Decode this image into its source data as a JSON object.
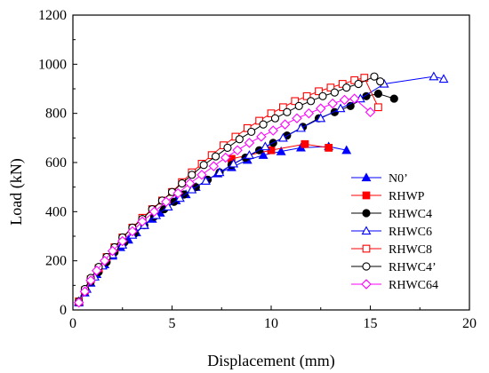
{
  "chart_data": {
    "type": "scatter",
    "xlabel": "Displacement (mm)",
    "ylabel": "Load (kN)",
    "xlim": [
      0,
      20
    ],
    "ylim": [
      0,
      1200
    ],
    "xticks": [
      0,
      5,
      10,
      15,
      20
    ],
    "yticks": [
      0,
      200,
      400,
      600,
      800,
      1000,
      1200
    ],
    "grid": false,
    "legend_position": "right",
    "series": [
      {
        "name": "N0’",
        "color": "#0000ff",
        "marker": "triangle-filled",
        "x": [
          0.3,
          0.6,
          0.9,
          1.2,
          1.6,
          2.0,
          2.4,
          2.8,
          3.2,
          3.6,
          4.0,
          4.4,
          4.8,
          5.2,
          5.7,
          6.2,
          6.7,
          7.3,
          8.0,
          8.8,
          9.6,
          10.5,
          11.5,
          12.9,
          13.8
        ],
        "y": [
          30,
          70,
          110,
          145,
          185,
          220,
          255,
          285,
          315,
          345,
          370,
          395,
          420,
          445,
          470,
          500,
          525,
          555,
          580,
          610,
          630,
          645,
          660,
          665,
          650
        ]
      },
      {
        "name": "RHWP",
        "color": "#ff0000",
        "marker": "square-filled",
        "x": [
          8.0,
          10.0,
          11.7,
          12.9
        ],
        "y": [
          615,
          650,
          675,
          660
        ]
      },
      {
        "name": "RHWC4",
        "color": "#000000",
        "marker": "circle-filled",
        "x": [
          0.3,
          0.6,
          0.9,
          1.3,
          1.7,
          2.1,
          2.6,
          3.1,
          3.6,
          4.1,
          4.6,
          5.1,
          5.6,
          6.2,
          6.8,
          7.4,
          8.0,
          8.7,
          9.4,
          10.1,
          10.8,
          11.6,
          12.4,
          13.2,
          14.0,
          14.8,
          15.4,
          16.2
        ],
        "y": [
          30,
          75,
          115,
          155,
          195,
          235,
          275,
          310,
          345,
          380,
          410,
          440,
          470,
          500,
          530,
          560,
          590,
          620,
          650,
          680,
          710,
          745,
          780,
          805,
          830,
          870,
          880,
          860
        ]
      },
      {
        "name": "RHWC6",
        "color": "#0000ff",
        "marker": "triangle-open",
        "x": [
          0.3,
          0.7,
          1.1,
          1.5,
          2.0,
          2.5,
          3.0,
          3.6,
          4.2,
          4.8,
          5.4,
          6.0,
          6.7,
          7.4,
          8.1,
          8.9,
          9.7,
          10.6,
          11.5,
          12.5,
          13.5,
          14.5,
          15.7,
          18.2,
          18.7
        ],
        "y": [
          35,
          85,
          135,
          180,
          225,
          265,
          305,
          345,
          385,
          420,
          455,
          490,
          525,
          560,
          595,
          630,
          665,
          700,
          740,
          780,
          820,
          860,
          920,
          950,
          940
        ]
      },
      {
        "name": "RHWC8",
        "color": "#ff0000",
        "marker": "square-open",
        "x": [
          0.3,
          0.6,
          0.9,
          1.3,
          1.7,
          2.1,
          2.5,
          3.0,
          3.5,
          4.0,
          4.5,
          5.0,
          5.5,
          6.0,
          6.5,
          7.0,
          7.6,
          8.2,
          8.8,
          9.4,
          10.0,
          10.6,
          11.2,
          11.8,
          12.4,
          13.0,
          13.6,
          14.2,
          14.7,
          15.4
        ],
        "y": [
          35,
          80,
          125,
          170,
          215,
          255,
          295,
          335,
          375,
          410,
          445,
          480,
          520,
          560,
          595,
          630,
          670,
          705,
          740,
          770,
          800,
          825,
          850,
          870,
          890,
          905,
          920,
          935,
          945,
          825
        ]
      },
      {
        "name": "RHWC4’",
        "color": "#000000",
        "marker": "circle-open",
        "x": [
          0.3,
          0.6,
          0.9,
          1.3,
          1.7,
          2.1,
          2.5,
          3.0,
          3.5,
          4.0,
          4.5,
          5.0,
          5.5,
          6.0,
          6.6,
          7.2,
          7.8,
          8.4,
          9.0,
          9.6,
          10.2,
          10.8,
          11.4,
          12.0,
          12.6,
          13.2,
          13.8,
          14.4,
          15.2,
          15.5
        ],
        "y": [
          35,
          85,
          130,
          175,
          215,
          255,
          295,
          335,
          370,
          410,
          445,
          480,
          515,
          550,
          590,
          625,
          660,
          695,
          725,
          755,
          780,
          805,
          830,
          850,
          870,
          885,
          905,
          920,
          950,
          930
        ]
      },
      {
        "name": "RHWC64",
        "color": "#ff00ff",
        "marker": "diamond-open",
        "x": [
          0.3,
          0.6,
          0.9,
          1.2,
          1.6,
          2.0,
          2.5,
          3.0,
          3.5,
          4.1,
          4.7,
          5.3,
          5.9,
          6.5,
          7.1,
          7.7,
          8.3,
          8.9,
          9.5,
          10.1,
          10.7,
          11.3,
          11.9,
          12.5,
          13.1,
          13.7,
          14.2,
          15.0
        ],
        "y": [
          30,
          75,
          120,
          160,
          200,
          240,
          280,
          320,
          360,
          400,
          440,
          475,
          515,
          550,
          585,
          620,
          650,
          680,
          705,
          730,
          755,
          780,
          800,
          820,
          840,
          855,
          860,
          805
        ]
      }
    ]
  }
}
